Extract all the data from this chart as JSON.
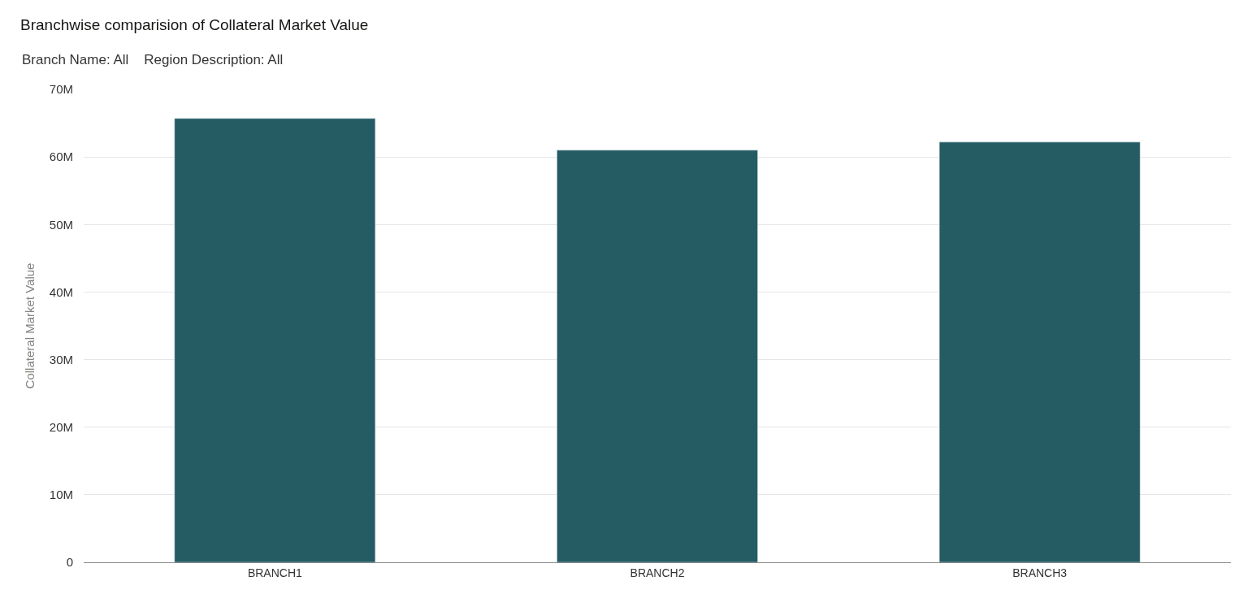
{
  "chart_data": {
    "type": "bar",
    "title": "Branchwise comparision of Collateral Market Value",
    "subtitle": "Branch Name: All    Region Description: All",
    "ylabel": "Collateral Market Value",
    "categories": [
      "BRANCH1",
      "BRANCH2",
      "BRANCH3"
    ],
    "values": [
      65.7,
      61.0,
      62.2
    ],
    "color": "#255c64",
    "ylim": [
      0,
      70
    ],
    "yticks": [
      {
        "value": 0,
        "label": "0"
      },
      {
        "value": 10,
        "label": "10M"
      },
      {
        "value": 20,
        "label": "20M"
      },
      {
        "value": 30,
        "label": "30M"
      },
      {
        "value": 40,
        "label": "40M"
      },
      {
        "value": 50,
        "label": "50M"
      },
      {
        "value": 60,
        "label": "60M"
      },
      {
        "value": 70,
        "label": "70M"
      }
    ],
    "grid": "y",
    "legend": false
  }
}
